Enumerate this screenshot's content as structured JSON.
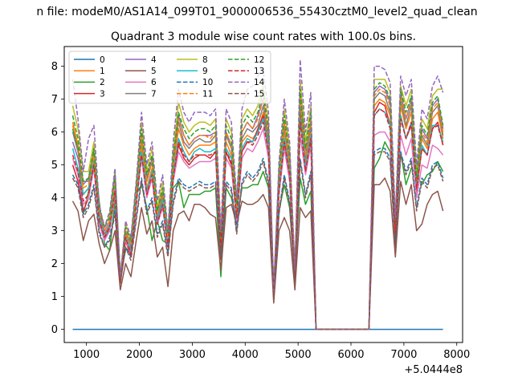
{
  "suptitle": "n file: modeM0/AS1A14_099T01_9000006536_55430cztM0_level2_quad_clean",
  "chart_data": {
    "type": "line",
    "title": "Quadrant 3 module wise count rates with 100.0s bins.",
    "xlabel": "",
    "ylabel": "",
    "x_offset_label": "+5.0444e8",
    "xlim": [
      580,
      8110
    ],
    "ylim": [
      -0.4,
      8.6
    ],
    "xticks": [
      1000,
      2000,
      3000,
      4000,
      5000,
      6000,
      7000,
      8000
    ],
    "yticks": [
      0,
      1,
      2,
      3,
      4,
      5,
      6,
      7,
      8
    ],
    "legend_location": "upper-left",
    "legend_columns": 4,
    "x": [
      740,
      840,
      940,
      1040,
      1140,
      1240,
      1340,
      1440,
      1540,
      1640,
      1740,
      1840,
      1940,
      2040,
      2140,
      2240,
      2340,
      2440,
      2540,
      2640,
      2740,
      2840,
      2940,
      3040,
      3140,
      3240,
      3340,
      3440,
      3540,
      3640,
      3740,
      3840,
      3940,
      4040,
      4140,
      4240,
      4340,
      4440,
      4540,
      4640,
      4740,
      4840,
      4940,
      5040,
      5140,
      5240,
      5340,
      5440,
      5540,
      5640,
      5740,
      5840,
      5940,
      6040,
      6140,
      6240,
      6340,
      6440,
      6540,
      6640,
      6740,
      6840,
      6940,
      7040,
      7140,
      7240,
      7340,
      7440,
      7540,
      7640,
      7740
    ],
    "series": [
      {
        "name": "0",
        "color": "#1f77b4",
        "values": [
          0,
          0,
          0,
          0,
          0,
          0,
          0,
          0,
          0,
          0,
          0,
          0,
          0,
          0,
          0,
          0,
          0,
          0,
          0,
          0,
          0,
          0,
          0,
          0,
          0,
          0,
          0,
          0,
          0,
          0,
          0,
          0,
          0,
          0,
          0,
          0,
          0,
          0,
          0,
          0,
          0,
          0,
          0,
          0,
          0,
          0,
          0,
          0,
          0,
          0,
          0,
          0,
          0,
          0,
          0,
          0,
          0,
          0,
          0,
          0,
          0,
          0,
          0,
          0,
          0,
          0,
          0,
          0,
          0,
          0,
          0
        ]
      },
      {
        "name": "1",
        "color": "#ff7f0e",
        "values": [
          6.3,
          5.6,
          4.1,
          4.3,
          5.2,
          3.5,
          2.8,
          3.2,
          4.4,
          1.5,
          2.9,
          2.3,
          3.9,
          5.6,
          4.3,
          4.9,
          3.4,
          4.0,
          2.7,
          4.9,
          6.1,
          5.6,
          5.3,
          5.5,
          5.6,
          5.6,
          5.6,
          5.7,
          2.6,
          5.7,
          5.3,
          3.5,
          5.7,
          5.9,
          5.8,
          6.0,
          6.6,
          5.6,
          1.1,
          4.5,
          6.0,
          4.9,
          1.6,
          6.7,
          5.1,
          6.1,
          0,
          0,
          0,
          0,
          0,
          0,
          0,
          0,
          0,
          0,
          0,
          6.8,
          7.0,
          6.9,
          6.5,
          3.0,
          6.8,
          6.1,
          6.6,
          4.4,
          5.8,
          5.5,
          6.4,
          6.6,
          5.8
        ]
      },
      {
        "name": "2",
        "color": "#2ca02c",
        "values": [
          6.1,
          5.5,
          3.5,
          4.2,
          5.5,
          3.9,
          2.6,
          2.4,
          3.9,
          1.7,
          2.4,
          2.5,
          4.1,
          4.4,
          3.7,
          2.7,
          3.3,
          2.7,
          2.6,
          4.3,
          4.5,
          3.7,
          4.1,
          4.1,
          4.1,
          4.2,
          4.2,
          4.3,
          1.6,
          4.3,
          4.0,
          3.3,
          4.3,
          4.3,
          4.4,
          4.4,
          4.8,
          4.3,
          1.2,
          3.6,
          4.4,
          3.7,
          1.6,
          4.6,
          3.8,
          4.2,
          0,
          0,
          0,
          0,
          0,
          0,
          0,
          0,
          0,
          0,
          0,
          4.9,
          5.2,
          5.7,
          5.4,
          3.4,
          5.4,
          4.4,
          4.9,
          4.7,
          4.4,
          4.7,
          4.8,
          5.1,
          4.8
        ]
      },
      {
        "name": "3",
        "color": "#d62728",
        "values": [
          5.0,
          4.5,
          3.6,
          4.0,
          5.0,
          3.3,
          2.7,
          3.1,
          4.2,
          1.4,
          2.7,
          2.2,
          3.8,
          5.3,
          4.1,
          4.6,
          3.2,
          3.8,
          2.5,
          4.6,
          5.6,
          5.2,
          5.0,
          5.2,
          5.3,
          5.3,
          5.2,
          5.4,
          2.4,
          5.4,
          5.0,
          3.3,
          5.4,
          5.7,
          5.7,
          6.1,
          6.5,
          5.4,
          1.0,
          4.3,
          5.7,
          4.6,
          1.5,
          6.5,
          4.9,
          5.8,
          0,
          0,
          0,
          0,
          0,
          0,
          0,
          0,
          0,
          0,
          0,
          6.6,
          6.9,
          6.8,
          6.2,
          2.8,
          6.5,
          5.8,
          6.2,
          4.2,
          5.5,
          5.3,
          6.1,
          6.3,
          5.6
        ]
      },
      {
        "name": "4",
        "color": "#9467bd",
        "values": [
          5.7,
          5.2,
          4.4,
          4.6,
          5.4,
          3.5,
          3.0,
          3.3,
          4.7,
          1.6,
          3.0,
          2.6,
          4.2,
          5.9,
          4.6,
          5.2,
          3.6,
          4.2,
          2.8,
          5.2,
          6.5,
          5.9,
          5.6,
          5.8,
          5.9,
          5.9,
          5.9,
          6.0,
          2.7,
          6.0,
          5.6,
          3.7,
          6.0,
          6.3,
          6.1,
          6.5,
          7.0,
          5.9,
          1.1,
          4.7,
          6.3,
          5.2,
          1.7,
          7.1,
          5.4,
          6.4,
          0,
          0,
          0,
          0,
          0,
          0,
          0,
          0,
          0,
          0,
          0,
          7.2,
          7.4,
          7.3,
          6.9,
          3.2,
          7.2,
          6.4,
          7.0,
          4.6,
          6.1,
          5.8,
          6.8,
          7.0,
          6.1
        ]
      },
      {
        "name": "5",
        "color": "#8c564b",
        "values": [
          3.9,
          3.6,
          2.7,
          3.3,
          3.5,
          2.6,
          2.0,
          2.4,
          3.0,
          1.2,
          2.0,
          1.6,
          2.7,
          3.7,
          2.9,
          3.3,
          2.2,
          2.5,
          1.3,
          3.0,
          3.5,
          3.6,
          3.3,
          3.8,
          3.8,
          3.7,
          3.5,
          3.4,
          1.8,
          3.7,
          3.8,
          3.2,
          3.9,
          3.8,
          3.8,
          3.9,
          4.1,
          3.7,
          0.8,
          3.0,
          3.4,
          3.0,
          1.2,
          3.7,
          3.4,
          3.6,
          0,
          0,
          0,
          0,
          0,
          0,
          0,
          0,
          0,
          0,
          0,
          4.4,
          4.4,
          4.6,
          4.2,
          2.2,
          4.5,
          3.8,
          4.4,
          3.0,
          3.2,
          3.8,
          4.1,
          4.2,
          3.6
        ]
      },
      {
        "name": "6",
        "color": "#e377c2",
        "values": [
          5.2,
          4.7,
          3.8,
          4.0,
          4.9,
          3.2,
          2.7,
          3.0,
          4.1,
          1.5,
          2.7,
          2.3,
          3.8,
          5.2,
          4.0,
          4.6,
          3.2,
          3.7,
          2.5,
          4.5,
          5.4,
          5.1,
          4.9,
          5.0,
          5.1,
          5.1,
          5.1,
          5.2,
          2.4,
          5.2,
          4.9,
          3.3,
          5.2,
          5.5,
          5.4,
          5.7,
          6.1,
          5.2,
          1.0,
          4.1,
          5.5,
          4.5,
          1.5,
          5.9,
          4.7,
          5.6,
          0,
          0,
          0,
          0,
          0,
          0,
          0,
          0,
          0,
          0,
          0,
          5.9,
          6.0,
          6.0,
          5.7,
          2.7,
          5.9,
          5.3,
          5.8,
          4.0,
          5.0,
          4.9,
          5.6,
          5.5,
          5.3
        ]
      },
      {
        "name": "7",
        "color": "#7f7f7f",
        "values": [
          6.0,
          5.4,
          4.5,
          4.5,
          5.4,
          3.5,
          2.9,
          3.2,
          4.4,
          1.5,
          3.0,
          2.5,
          4.1,
          5.8,
          4.5,
          5.1,
          3.4,
          4.1,
          2.7,
          5.0,
          6.3,
          5.7,
          5.5,
          5.7,
          5.8,
          5.7,
          5.7,
          5.9,
          2.6,
          5.9,
          5.5,
          3.6,
          5.8,
          6.1,
          6.0,
          6.2,
          6.8,
          5.7,
          1.1,
          4.5,
          6.2,
          5.0,
          1.6,
          6.9,
          5.2,
          6.2,
          0,
          0,
          0,
          0,
          0,
          0,
          0,
          0,
          0,
          0,
          0,
          7.0,
          7.2,
          7.1,
          6.6,
          3.0,
          7.0,
          6.2,
          6.8,
          4.4,
          5.9,
          5.6,
          6.6,
          6.8,
          5.9
        ]
      },
      {
        "name": "8",
        "color": "#bcbd22",
        "values": [
          6.8,
          6.1,
          4.8,
          4.8,
          5.7,
          3.7,
          3.1,
          3.5,
          4.8,
          1.6,
          3.2,
          2.7,
          4.4,
          6.3,
          4.8,
          5.5,
          3.7,
          4.5,
          2.9,
          5.4,
          6.9,
          6.3,
          6.0,
          6.2,
          6.3,
          6.3,
          6.2,
          6.4,
          2.9,
          6.4,
          6.0,
          3.9,
          6.4,
          6.7,
          6.5,
          6.8,
          7.4,
          6.3,
          1.2,
          4.9,
          6.7,
          5.5,
          1.8,
          7.6,
          5.7,
          6.8,
          0,
          0,
          0,
          0,
          0,
          0,
          0,
          0,
          0,
          0,
          0,
          7.6,
          7.6,
          7.6,
          7.2,
          3.3,
          7.4,
          6.8,
          7.3,
          4.8,
          6.4,
          6.1,
          7.1,
          7.3,
          7.3
        ]
      },
      {
        "name": "9",
        "color": "#17becf",
        "values": [
          5.5,
          4.9,
          4.1,
          4.3,
          5.1,
          3.4,
          2.8,
          3.1,
          4.3,
          1.5,
          2.8,
          2.4,
          3.9,
          5.4,
          4.2,
          4.8,
          3.3,
          3.9,
          2.6,
          4.7,
          5.8,
          5.4,
          5.1,
          5.4,
          5.5,
          5.4,
          5.4,
          5.5,
          2.5,
          5.5,
          5.2,
          3.4,
          5.5,
          5.8,
          5.7,
          6.0,
          6.4,
          5.5,
          1.0,
          4.3,
          5.8,
          4.7,
          1.5,
          6.4,
          4.9,
          5.9,
          0,
          0,
          0,
          0,
          0,
          0,
          0,
          0,
          0,
          0,
          0,
          6.5,
          6.7,
          6.6,
          6.2,
          2.9,
          6.5,
          5.8,
          6.3,
          4.3,
          5.6,
          5.3,
          6.2,
          6.2,
          5.7
        ]
      },
      {
        "name": "10",
        "color": "#1f77b4",
        "dashed": true,
        "values": [
          4.7,
          4.4,
          3.5,
          3.8,
          4.4,
          3.0,
          2.5,
          2.8,
          3.6,
          1.4,
          2.5,
          2.2,
          3.4,
          4.6,
          3.6,
          4.0,
          2.9,
          3.3,
          2.3,
          3.9,
          4.6,
          4.4,
          4.3,
          4.4,
          4.5,
          4.4,
          4.4,
          4.5,
          2.2,
          4.5,
          4.3,
          3.0,
          4.5,
          4.8,
          4.6,
          4.8,
          5.2,
          4.5,
          1.0,
          3.6,
          4.7,
          3.9,
          1.4,
          5.2,
          4.1,
          4.8,
          0,
          0,
          0,
          0,
          0,
          0,
          0,
          0,
          0,
          0,
          0,
          5.4,
          5.5,
          5.5,
          5.2,
          2.6,
          5.4,
          4.8,
          5.2,
          3.7,
          4.6,
          4.4,
          5.0,
          5.1,
          4.6
        ]
      },
      {
        "name": "11",
        "color": "#ff7f0e",
        "dashed": true,
        "values": [
          6.2,
          5.6,
          4.3,
          4.4,
          5.3,
          3.6,
          3.0,
          3.3,
          4.5,
          1.5,
          3.0,
          2.6,
          4.1,
          5.9,
          4.5,
          5.1,
          3.5,
          4.2,
          2.8,
          5.0,
          6.4,
          5.9,
          5.6,
          5.8,
          5.9,
          5.9,
          5.8,
          6.0,
          2.7,
          6.0,
          5.6,
          3.6,
          6.0,
          6.3,
          6.1,
          6.4,
          7.0,
          5.9,
          1.1,
          4.6,
          6.3,
          5.1,
          1.7,
          7.1,
          5.3,
          6.4,
          0,
          0,
          0,
          0,
          0,
          0,
          0,
          0,
          0,
          0,
          0,
          7.1,
          7.3,
          7.2,
          6.8,
          3.1,
          7.1,
          6.4,
          6.9,
          4.5,
          6.0,
          5.7,
          6.7,
          6.9,
          6.0
        ]
      },
      {
        "name": "12",
        "color": "#2ca02c",
        "dashed": true,
        "values": [
          6.5,
          5.8,
          4.5,
          4.6,
          5.5,
          3.7,
          3.1,
          3.4,
          4.7,
          1.6,
          3.1,
          2.7,
          4.3,
          6.1,
          4.7,
          5.3,
          3.6,
          4.3,
          2.9,
          5.2,
          6.6,
          6.1,
          5.8,
          6.0,
          6.1,
          6.1,
          6.0,
          6.2,
          2.8,
          6.2,
          5.8,
          3.8,
          6.2,
          6.5,
          6.3,
          6.6,
          7.2,
          6.1,
          1.2,
          4.8,
          6.5,
          5.3,
          1.7,
          7.3,
          5.5,
          6.6,
          0,
          0,
          0,
          0,
          0,
          0,
          0,
          0,
          0,
          0,
          0,
          7.3,
          7.5,
          7.4,
          7.0,
          3.2,
          7.3,
          6.6,
          7.1,
          4.6,
          6.2,
          5.9,
          6.9,
          7.1,
          6.2
        ]
      },
      {
        "name": "13",
        "color": "#d62728",
        "dashed": true,
        "values": [
          5.3,
          4.8,
          3.9,
          4.1,
          5.0,
          3.3,
          2.8,
          3.1,
          4.2,
          1.4,
          2.8,
          2.3,
          3.8,
          5.3,
          4.1,
          4.7,
          3.2,
          3.8,
          2.5,
          4.6,
          5.7,
          5.3,
          5.1,
          5.3,
          5.3,
          5.3,
          5.3,
          5.4,
          2.5,
          5.4,
          5.1,
          3.4,
          5.4,
          5.7,
          5.6,
          5.9,
          6.3,
          5.4,
          1.0,
          4.2,
          5.7,
          4.7,
          1.5,
          6.3,
          4.8,
          5.8,
          0,
          0,
          0,
          0,
          0,
          0,
          0,
          0,
          0,
          0,
          0,
          6.5,
          6.7,
          6.6,
          6.1,
          2.9,
          6.4,
          5.8,
          6.3,
          4.3,
          5.5,
          5.3,
          6.1,
          6.2,
          5.6
        ]
      },
      {
        "name": "14",
        "color": "#9467bd",
        "dashed": true,
        "values": [
          7.6,
          6.4,
          4.8,
          5.8,
          6.2,
          3.8,
          3.1,
          3.6,
          4.9,
          1.6,
          3.3,
          2.8,
          4.5,
          6.6,
          5.0,
          5.7,
          3.9,
          4.7,
          3.0,
          5.7,
          7.3,
          6.6,
          6.3,
          6.6,
          6.6,
          6.6,
          6.5,
          6.7,
          3.0,
          6.7,
          6.3,
          4.0,
          6.7,
          7.3,
          7.4,
          7.7,
          7.9,
          6.6,
          1.2,
          5.1,
          7.0,
          5.7,
          1.8,
          8.2,
          6.0,
          7.2,
          0,
          0,
          0,
          0,
          0,
          0,
          0,
          0,
          0,
          0,
          0,
          8.0,
          8.0,
          7.9,
          7.5,
          3.4,
          7.7,
          7.1,
          7.6,
          5.0,
          6.7,
          6.4,
          7.4,
          7.7,
          7.2
        ]
      },
      {
        "name": "15",
        "color": "#8c564b",
        "dashed": true,
        "values": [
          4.6,
          4.3,
          3.4,
          3.7,
          4.3,
          2.9,
          2.5,
          2.7,
          3.5,
          1.4,
          2.5,
          2.1,
          3.3,
          4.5,
          3.5,
          3.9,
          2.8,
          3.2,
          2.2,
          3.8,
          4.5,
          4.3,
          4.2,
          4.3,
          4.4,
          4.3,
          4.3,
          4.4,
          2.1,
          4.4,
          4.2,
          2.9,
          4.4,
          4.7,
          4.5,
          4.7,
          5.1,
          4.4,
          0.9,
          3.5,
          4.6,
          3.8,
          1.4,
          5.1,
          4.0,
          4.7,
          0,
          0,
          0,
          0,
          0,
          0,
          0,
          0,
          0,
          0,
          0,
          5.3,
          5.4,
          5.4,
          5.1,
          2.5,
          5.3,
          4.7,
          5.1,
          3.6,
          4.5,
          4.3,
          4.9,
          5.0,
          4.5
        ]
      }
    ]
  }
}
